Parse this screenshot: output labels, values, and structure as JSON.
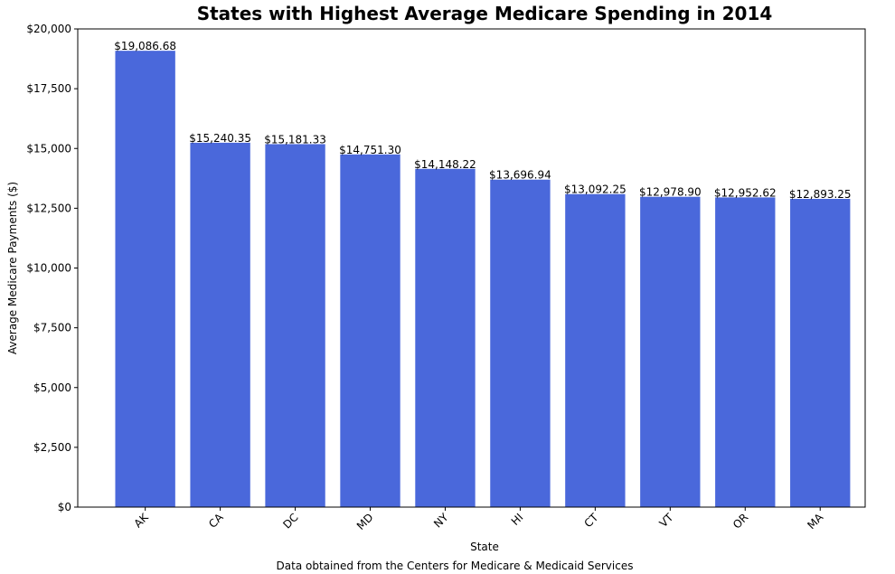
{
  "chart_data": {
    "type": "bar",
    "title": "States with Highest Average Medicare Spending in 2014",
    "xlabel": "State",
    "ylabel": "Average Medicare Payments ($)",
    "caption": "Data obtained from the Centers for Medicare & Medicaid Services",
    "categories": [
      "AK",
      "CA",
      "DC",
      "MD",
      "NY",
      "HI",
      "CT",
      "VT",
      "OR",
      "MA"
    ],
    "values": [
      19086.68,
      15240.35,
      15181.33,
      14751.3,
      14148.22,
      13696.94,
      13092.25,
      12978.9,
      12952.62,
      12893.25
    ],
    "value_labels": [
      "$19,086.68",
      "$15,240.35",
      "$15,181.33",
      "$14,751.30",
      "$14,148.22",
      "$13,696.94",
      "$13,092.25",
      "$12,978.90",
      "$12,952.62",
      "$12,893.25"
    ],
    "ylim": [
      0,
      20000
    ],
    "yticks": [
      0,
      2500,
      5000,
      7500,
      10000,
      12500,
      15000,
      17500,
      20000
    ],
    "ytick_labels": [
      "$0",
      "$2,500",
      "$5,000",
      "$7,500",
      "$10,000",
      "$12,500",
      "$15,000",
      "$17,500",
      "$20,000"
    ],
    "bar_color": "#4a68db",
    "grid": false,
    "legend": false
  }
}
